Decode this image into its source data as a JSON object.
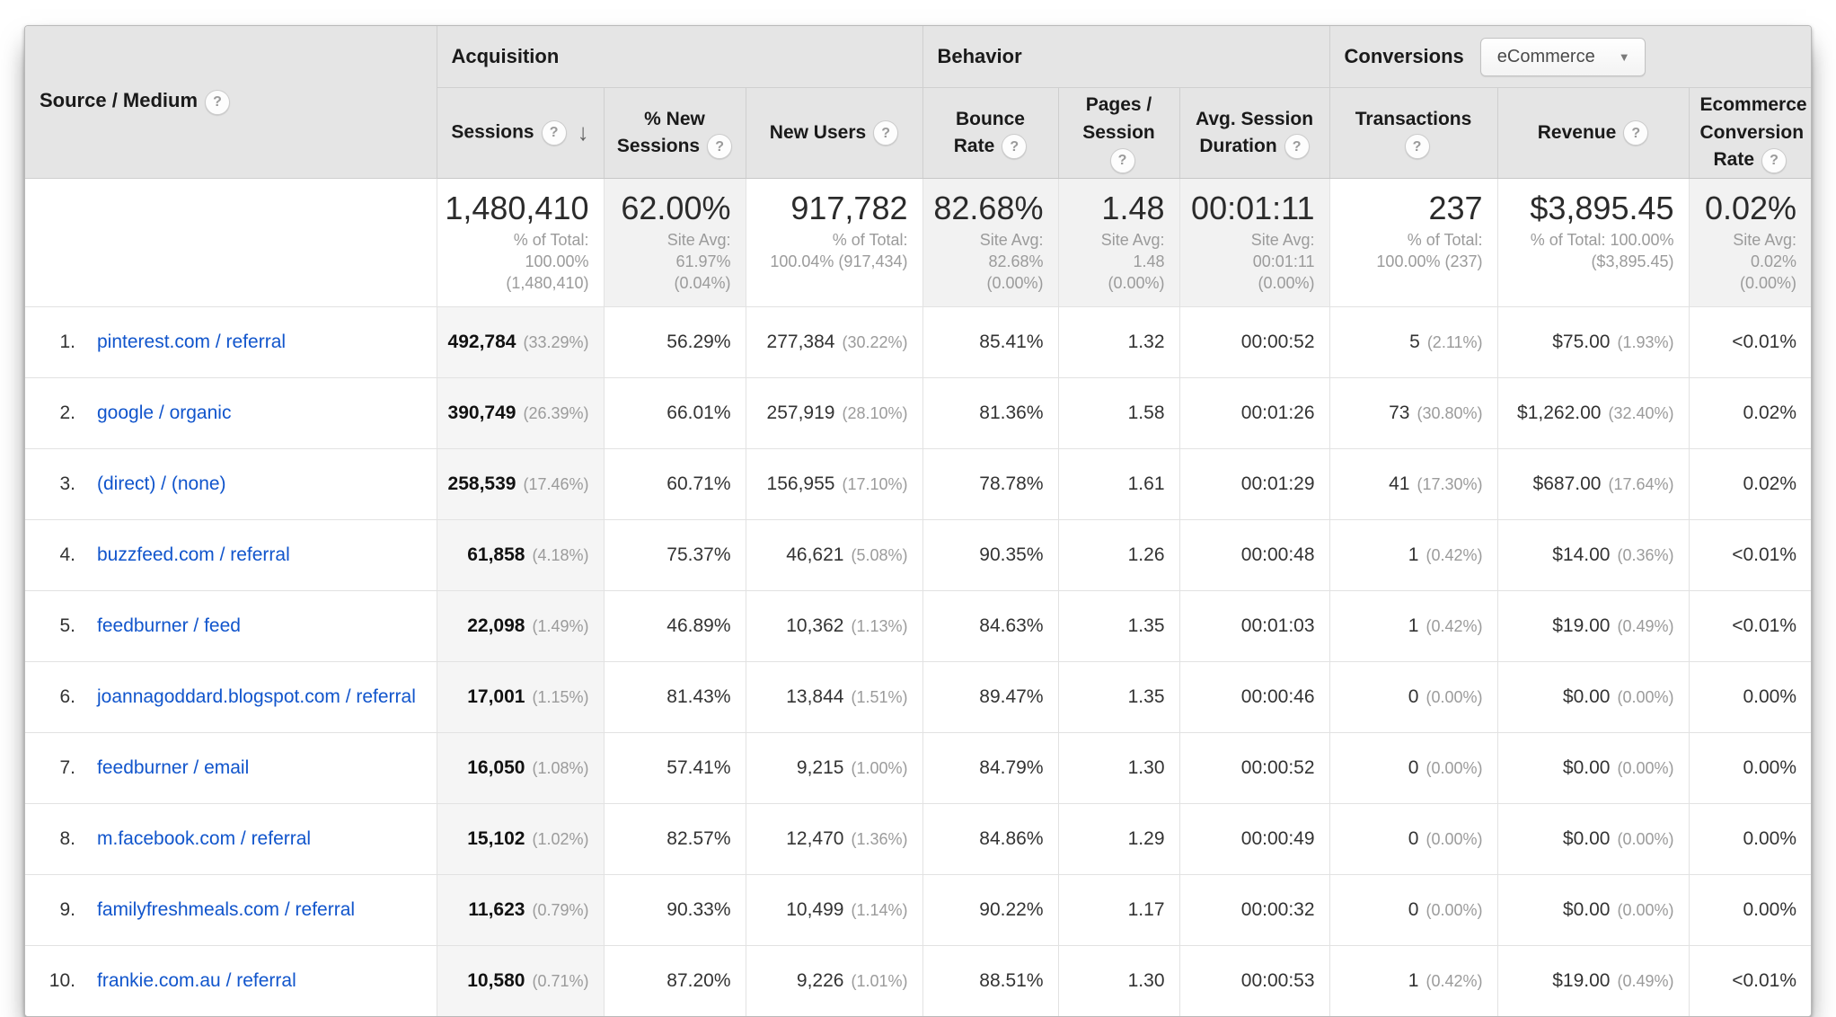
{
  "icons": {
    "help": "?",
    "sort_desc": "↓",
    "dropdown_arrow": "▼"
  },
  "colors": {
    "link": "#1155cc",
    "header_bg": "#e5e5e5",
    "shaded_summary_cell": "#f2f2f2",
    "sorted_column_bg": "#f5f5f5"
  },
  "table": {
    "source_medium_header": "Source / Medium",
    "groups": {
      "acquisition": "Acquisition",
      "behavior": "Behavior",
      "conversions": "Conversions",
      "conversions_dropdown": "eCommerce"
    },
    "columns": {
      "sessions": "Sessions",
      "new_sessions": "% New Sessions",
      "new_users": "New Users",
      "bounce_rate": "Bounce Rate",
      "pages_session": "Pages / Session",
      "avg_duration": "Avg. Session Duration",
      "transactions": "Transactions",
      "revenue": "Revenue",
      "ecommerce_rate": "Ecommerce Conversion Rate"
    },
    "summary": [
      {
        "key": "sessions",
        "value": "1,480,410",
        "sub": "% of Total:\n100.00%\n(1,480,410)",
        "shaded": false
      },
      {
        "key": "new-sessions",
        "value": "62.00%",
        "sub": "Site Avg:\n61.97%\n(0.04%)",
        "shaded": true
      },
      {
        "key": "new-users",
        "value": "917,782",
        "sub": "% of Total:\n100.04% (917,434)",
        "shaded": false
      },
      {
        "key": "bounce-rate",
        "value": "82.68%",
        "sub": "Site Avg:\n82.68%\n(0.00%)",
        "shaded": true
      },
      {
        "key": "pages-session",
        "value": "1.48",
        "sub": "Site Avg:\n1.48\n(0.00%)",
        "shaded": true
      },
      {
        "key": "avg-duration",
        "value": "00:01:11",
        "sub": "Site Avg:\n00:01:11\n(0.00%)",
        "shaded": true
      },
      {
        "key": "transactions",
        "value": "237",
        "sub": "% of Total:\n100.00% (237)",
        "shaded": false
      },
      {
        "key": "revenue",
        "value": "$3,895.45",
        "sub": "% of Total: 100.00%\n($3,895.45)",
        "shaded": false
      },
      {
        "key": "ecommerce-rate",
        "value": "0.02%",
        "sub": "Site Avg:\n0.02%\n(0.00%)",
        "shaded": true
      }
    ],
    "rows": [
      {
        "rank": "1.",
        "source": "pinterest.com / referral",
        "sessions": "492,784",
        "sessions_pct": "(33.29%)",
        "new_sessions": "56.29%",
        "new_users": "277,384",
        "new_users_pct": "(30.22%)",
        "bounce": "85.41%",
        "pages": "1.32",
        "duration": "00:00:52",
        "transactions": "5",
        "transactions_pct": "(2.11%)",
        "revenue": "$75.00",
        "revenue_pct": "(1.93%)",
        "ecomm": "<0.01%"
      },
      {
        "rank": "2.",
        "source": "google / organic",
        "sessions": "390,749",
        "sessions_pct": "(26.39%)",
        "new_sessions": "66.01%",
        "new_users": "257,919",
        "new_users_pct": "(28.10%)",
        "bounce": "81.36%",
        "pages": "1.58",
        "duration": "00:01:26",
        "transactions": "73",
        "transactions_pct": "(30.80%)",
        "revenue": "$1,262.00",
        "revenue_pct": "(32.40%)",
        "ecomm": "0.02%"
      },
      {
        "rank": "3.",
        "source": "(direct) / (none)",
        "sessions": "258,539",
        "sessions_pct": "(17.46%)",
        "new_sessions": "60.71%",
        "new_users": "156,955",
        "new_users_pct": "(17.10%)",
        "bounce": "78.78%",
        "pages": "1.61",
        "duration": "00:01:29",
        "transactions": "41",
        "transactions_pct": "(17.30%)",
        "revenue": "$687.00",
        "revenue_pct": "(17.64%)",
        "ecomm": "0.02%"
      },
      {
        "rank": "4.",
        "source": "buzzfeed.com / referral",
        "sessions": "61,858",
        "sessions_pct": "(4.18%)",
        "new_sessions": "75.37%",
        "new_users": "46,621",
        "new_users_pct": "(5.08%)",
        "bounce": "90.35%",
        "pages": "1.26",
        "duration": "00:00:48",
        "transactions": "1",
        "transactions_pct": "(0.42%)",
        "revenue": "$14.00",
        "revenue_pct": "(0.36%)",
        "ecomm": "<0.01%"
      },
      {
        "rank": "5.",
        "source": "feedburner / feed",
        "sessions": "22,098",
        "sessions_pct": "(1.49%)",
        "new_sessions": "46.89%",
        "new_users": "10,362",
        "new_users_pct": "(1.13%)",
        "bounce": "84.63%",
        "pages": "1.35",
        "duration": "00:01:03",
        "transactions": "1",
        "transactions_pct": "(0.42%)",
        "revenue": "$19.00",
        "revenue_pct": "(0.49%)",
        "ecomm": "<0.01%"
      },
      {
        "rank": "6.",
        "source": "joannagoddard.blogspot.com / referral",
        "sessions": "17,001",
        "sessions_pct": "(1.15%)",
        "new_sessions": "81.43%",
        "new_users": "13,844",
        "new_users_pct": "(1.51%)",
        "bounce": "89.47%",
        "pages": "1.35",
        "duration": "00:00:46",
        "transactions": "0",
        "transactions_pct": "(0.00%)",
        "revenue": "$0.00",
        "revenue_pct": "(0.00%)",
        "ecomm": "0.00%"
      },
      {
        "rank": "7.",
        "source": "feedburner / email",
        "sessions": "16,050",
        "sessions_pct": "(1.08%)",
        "new_sessions": "57.41%",
        "new_users": "9,215",
        "new_users_pct": "(1.00%)",
        "bounce": "84.79%",
        "pages": "1.30",
        "duration": "00:00:52",
        "transactions": "0",
        "transactions_pct": "(0.00%)",
        "revenue": "$0.00",
        "revenue_pct": "(0.00%)",
        "ecomm": "0.00%"
      },
      {
        "rank": "8.",
        "source": "m.facebook.com / referral",
        "sessions": "15,102",
        "sessions_pct": "(1.02%)",
        "new_sessions": "82.57%",
        "new_users": "12,470",
        "new_users_pct": "(1.36%)",
        "bounce": "84.86%",
        "pages": "1.29",
        "duration": "00:00:49",
        "transactions": "0",
        "transactions_pct": "(0.00%)",
        "revenue": "$0.00",
        "revenue_pct": "(0.00%)",
        "ecomm": "0.00%"
      },
      {
        "rank": "9.",
        "source": "familyfreshmeals.com / referral",
        "sessions": "11,623",
        "sessions_pct": "(0.79%)",
        "new_sessions": "90.33%",
        "new_users": "10,499",
        "new_users_pct": "(1.14%)",
        "bounce": "90.22%",
        "pages": "1.17",
        "duration": "00:00:32",
        "transactions": "0",
        "transactions_pct": "(0.00%)",
        "revenue": "$0.00",
        "revenue_pct": "(0.00%)",
        "ecomm": "0.00%"
      },
      {
        "rank": "10.",
        "source": "frankie.com.au / referral",
        "sessions": "10,580",
        "sessions_pct": "(0.71%)",
        "new_sessions": "87.20%",
        "new_users": "9,226",
        "new_users_pct": "(1.01%)",
        "bounce": "88.51%",
        "pages": "1.30",
        "duration": "00:00:53",
        "transactions": "1",
        "transactions_pct": "(0.42%)",
        "revenue": "$19.00",
        "revenue_pct": "(0.49%)",
        "ecomm": "<0.01%"
      }
    ]
  }
}
